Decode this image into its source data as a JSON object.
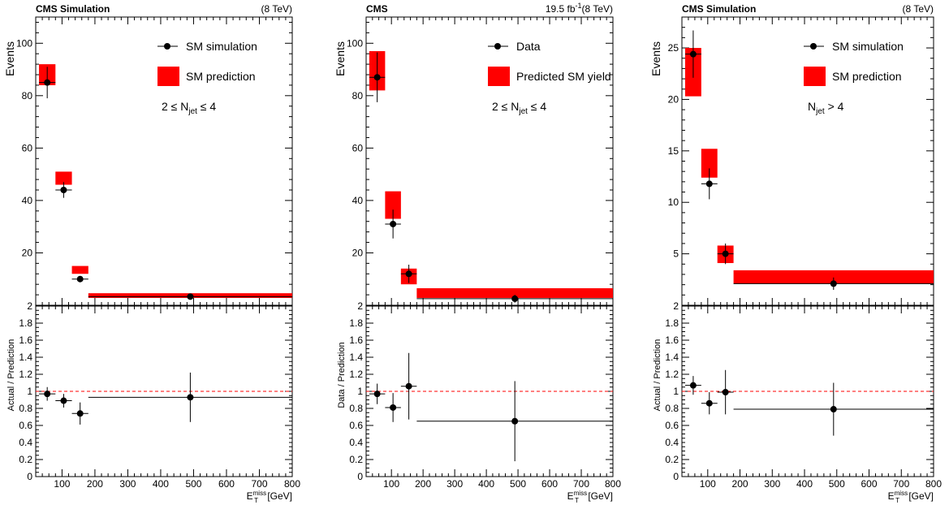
{
  "panels": [
    {
      "header_left": "CMS Simulation",
      "header_right_lumi": "",
      "header_right_energy": "(8 TeV)",
      "ylabel": "Events",
      "ratio_ylabel": "Actual / Prediction",
      "xlabel_base": "E",
      "xlabel_sub": "T",
      "xlabel_sup": "miss",
      "xlabel_unit": " [GeV]",
      "legend_points": "SM simulation",
      "legend_band": "SM prediction",
      "annotation": "2 ≤ N",
      "annotation_sub": "jet",
      "annotation_suffix": " ≤ 4"
    },
    {
      "header_left": "CMS",
      "header_right_lumi": "19.5 fb",
      "header_right_lumi_sup": "-1",
      "header_right_energy": "(8 TeV)",
      "ylabel": "Events",
      "ratio_ylabel": "Data / Prediction",
      "xlabel_base": "E",
      "xlabel_sub": "T",
      "xlabel_sup": "miss",
      "xlabel_unit": " [GeV]",
      "legend_points": "Data",
      "legend_band": "Predicted SM yield",
      "annotation": "2 ≤ N",
      "annotation_sub": "jet",
      "annotation_suffix": " ≤ 4"
    },
    {
      "header_left": "CMS Simulation",
      "header_right_lumi": "",
      "header_right_energy": "(8 TeV)",
      "ylabel": "Events",
      "ratio_ylabel": "Actual / Prediction",
      "xlabel_base": "E",
      "xlabel_sub": "T",
      "xlabel_sup": "miss",
      "xlabel_unit": " [GeV]",
      "legend_points": "SM simulation",
      "legend_band": "SM prediction",
      "annotation": "N",
      "annotation_sub": "jet",
      "annotation_suffix": " > 4"
    }
  ],
  "colors": {
    "band": "#ff0000",
    "marker": "#000000",
    "unity_line": "#ff0000"
  },
  "chart_data": [
    {
      "type": "scatter",
      "xlim": [
        20,
        800
      ],
      "ylim": [
        0,
        110
      ],
      "ratio_ylim": [
        0,
        2
      ],
      "x_ticks": [
        100,
        200,
        300,
        400,
        500,
        600,
        700,
        800
      ],
      "y_ticks": [
        20,
        40,
        60,
        80,
        100
      ],
      "ratio_ticks": [
        0,
        0.2,
        0.4,
        0.6,
        0.8,
        1,
        1.2,
        1.4,
        1.6,
        1.8,
        2
      ],
      "bins": [
        {
          "xlo": 30,
          "xhi": 80,
          "x": 55,
          "y": 85,
          "yerr": 6,
          "band_lo": 84,
          "band_hi": 92,
          "ratio": 0.97,
          "ratio_err": 0.08
        },
        {
          "xlo": 80,
          "xhi": 130,
          "x": 105,
          "y": 44,
          "yerr": 3,
          "band_lo": 46,
          "band_hi": 51,
          "ratio": 0.89,
          "ratio_err": 0.08
        },
        {
          "xlo": 130,
          "xhi": 180,
          "x": 155,
          "y": 10,
          "yerr": 1,
          "band_lo": 12,
          "band_hi": 15,
          "ratio": 0.74,
          "ratio_err": 0.13
        },
        {
          "xlo": 180,
          "xhi": 800,
          "x": 490,
          "y": 3.3,
          "yerr": 0.6,
          "band_lo": 2.8,
          "band_hi": 4.6,
          "ratio": 0.93,
          "ratio_err": 0.29
        }
      ]
    },
    {
      "type": "scatter",
      "xlim": [
        20,
        800
      ],
      "ylim": [
        0,
        110
      ],
      "ratio_ylim": [
        0,
        2
      ],
      "x_ticks": [
        100,
        200,
        300,
        400,
        500,
        600,
        700,
        800
      ],
      "y_ticks": [
        20,
        40,
        60,
        80,
        100
      ],
      "ratio_ticks": [
        0,
        0.2,
        0.4,
        0.6,
        0.8,
        1,
        1.2,
        1.4,
        1.6,
        1.8,
        2
      ],
      "bins": [
        {
          "xlo": 30,
          "xhi": 80,
          "x": 55,
          "y": 87,
          "yerr": 9.5,
          "band_lo": 82,
          "band_hi": 97,
          "ratio": 0.97,
          "ratio_err": 0.12
        },
        {
          "xlo": 80,
          "xhi": 130,
          "x": 105,
          "y": 31,
          "yerr": 5.5,
          "band_lo": 33,
          "band_hi": 43.5,
          "ratio": 0.81,
          "ratio_err": 0.17
        },
        {
          "xlo": 130,
          "xhi": 180,
          "x": 155,
          "y": 12,
          "yerr": 3.5,
          "band_lo": 8,
          "band_hi": 14,
          "ratio": 1.06,
          "ratio_err": 0.39
        },
        {
          "xlo": 180,
          "xhi": 800,
          "x": 490,
          "y": 2.5,
          "yerr": 1.5,
          "band_lo": 2.8,
          "band_hi": 6.5,
          "ratio": 0.65,
          "ratio_err": 0.47
        }
      ]
    },
    {
      "type": "scatter",
      "xlim": [
        20,
        800
      ],
      "ylim": [
        0,
        28
      ],
      "ratio_ylim": [
        0,
        2
      ],
      "x_ticks": [
        100,
        200,
        300,
        400,
        500,
        600,
        700,
        800
      ],
      "y_ticks": [
        5,
        10,
        15,
        20,
        25
      ],
      "ratio_ticks": [
        0,
        0.2,
        0.4,
        0.6,
        0.8,
        1,
        1.2,
        1.4,
        1.6,
        1.8,
        2
      ],
      "bins": [
        {
          "xlo": 30,
          "xhi": 80,
          "x": 55,
          "y": 24.4,
          "yerr": 2.3,
          "band_lo": 20.3,
          "band_hi": 25.0,
          "ratio": 1.07,
          "ratio_err": 0.11
        },
        {
          "xlo": 80,
          "xhi": 130,
          "x": 105,
          "y": 11.8,
          "yerr": 1.5,
          "band_lo": 12.4,
          "band_hi": 15.2,
          "ratio": 0.86,
          "ratio_err": 0.13
        },
        {
          "xlo": 130,
          "xhi": 180,
          "x": 155,
          "y": 5.0,
          "yerr": 1.0,
          "band_lo": 4.1,
          "band_hi": 5.8,
          "ratio": 0.99,
          "ratio_err": 0.26
        },
        {
          "xlo": 180,
          "xhi": 800,
          "x": 490,
          "y": 2.1,
          "yerr": 0.6,
          "band_lo": 2.1,
          "band_hi": 3.4,
          "ratio": 0.79,
          "ratio_err": 0.31
        }
      ]
    }
  ]
}
